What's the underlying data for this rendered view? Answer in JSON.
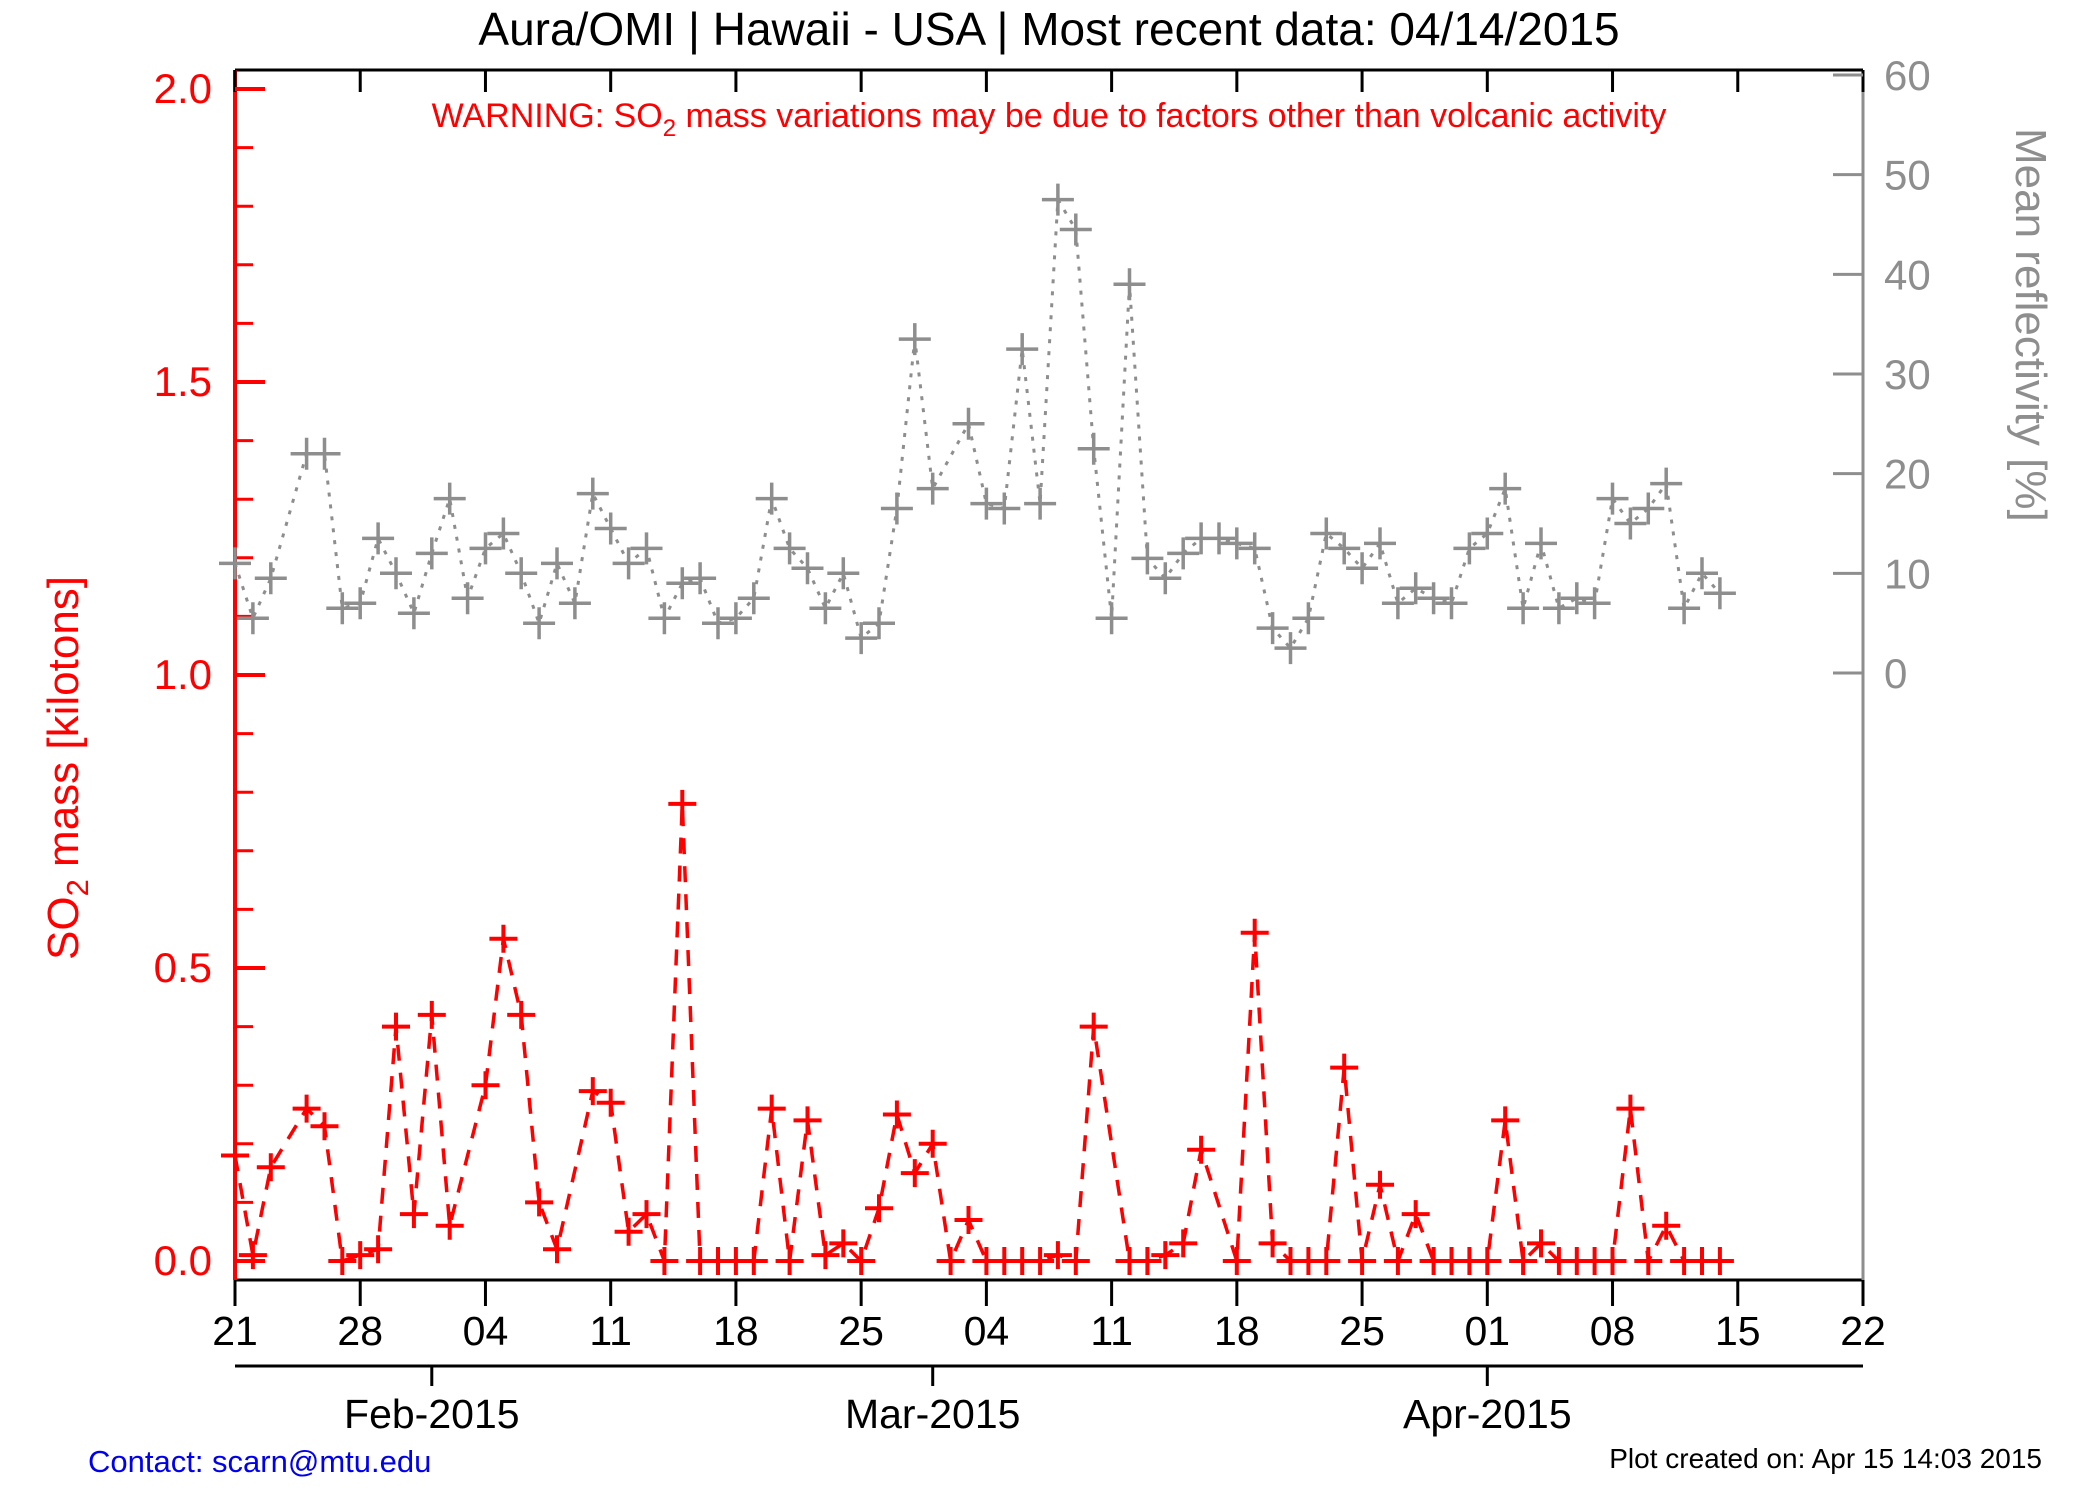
{
  "title": "Aura/OMI | Hawaii - USA | Most recent data: 04/14/2015",
  "warning": {
    "pre": "WARNING: SO",
    "sub": "2",
    "post": " mass variations may be due to factors other than volcanic activity"
  },
  "footer": {
    "contact": "Contact: scarn@mtu.edu",
    "created": "Plot created on: Apr 15 14:03 2015"
  },
  "colors": {
    "so2": "#ff0000",
    "reflectivity": "#8e8e8e",
    "frame": "#000000",
    "contact_blue": "#0000f0"
  },
  "chart_data": {
    "type": "line",
    "title": "Aura/OMI | Hawaii - USA | Most recent data: 04/14/2015",
    "x_axis": {
      "start_date": "2015-01-21",
      "range_days": [
        0,
        91
      ],
      "week_ticks": [
        {
          "day": 0,
          "label": "21"
        },
        {
          "day": 7,
          "label": "28"
        },
        {
          "day": 14,
          "label": "04"
        },
        {
          "day": 21,
          "label": "11"
        },
        {
          "day": 28,
          "label": "18"
        },
        {
          "day": 35,
          "label": "25"
        },
        {
          "day": 42,
          "label": "04"
        },
        {
          "day": 49,
          "label": "11"
        },
        {
          "day": 56,
          "label": "18"
        },
        {
          "day": 63,
          "label": "25"
        },
        {
          "day": 70,
          "label": "01"
        },
        {
          "day": 77,
          "label": "08"
        },
        {
          "day": 84,
          "label": "15"
        },
        {
          "day": 91,
          "label": "22"
        }
      ],
      "month_ticks": [
        {
          "day": 11,
          "label": "Feb-2015"
        },
        {
          "day": 39,
          "label": "Mar-2015"
        },
        {
          "day": 70,
          "label": "Apr-2015"
        }
      ]
    },
    "y_left": {
      "label_pre": "SO",
      "label_sub": "2",
      "label_post": " mass [kilotons]",
      "range": [
        0.0,
        2.0
      ],
      "major_ticks": [
        0.0,
        0.5,
        1.0,
        1.5,
        2.0
      ],
      "minor_step": 0.1,
      "color": "#ff0000"
    },
    "y_right": {
      "label": "Mean reflectivity [%]",
      "major_ticks": [
        0,
        10,
        20,
        30,
        40,
        50,
        60
      ],
      "color": "#8e8e8e"
    },
    "legend_position": "none",
    "grid": false,
    "series": [
      {
        "name": "SO2 mass [kilotons]",
        "axis": "left",
        "style": "dashed",
        "marker": "plus",
        "color": "#ff0000",
        "points": [
          {
            "d": 0,
            "v": 0.18
          },
          {
            "d": 1,
            "v": 0.01
          },
          {
            "d": 2,
            "v": 0.16
          },
          {
            "d": 4,
            "v": 0.26
          },
          {
            "d": 5,
            "v": 0.23
          },
          {
            "d": 6,
            "v": 0.0
          },
          {
            "d": 7,
            "v": 0.01
          },
          {
            "d": 8,
            "v": 0.02
          },
          {
            "d": 9,
            "v": 0.4
          },
          {
            "d": 10,
            "v": 0.08
          },
          {
            "d": 11,
            "v": 0.42
          },
          {
            "d": 12,
            "v": 0.06
          },
          {
            "d": 14,
            "v": 0.3
          },
          {
            "d": 15,
            "v": 0.55
          },
          {
            "d": 16,
            "v": 0.42
          },
          {
            "d": 17,
            "v": 0.1
          },
          {
            "d": 18,
            "v": 0.02
          },
          {
            "d": 20,
            "v": 0.29
          },
          {
            "d": 21,
            "v": 0.27
          },
          {
            "d": 22,
            "v": 0.05
          },
          {
            "d": 23,
            "v": 0.08
          },
          {
            "d": 24,
            "v": 0.0
          },
          {
            "d": 25,
            "v": 0.78
          },
          {
            "d": 26,
            "v": 0.0
          },
          {
            "d": 27,
            "v": 0.0
          },
          {
            "d": 28,
            "v": 0.0
          },
          {
            "d": 29,
            "v": 0.0
          },
          {
            "d": 30,
            "v": 0.26
          },
          {
            "d": 31,
            "v": 0.0
          },
          {
            "d": 32,
            "v": 0.24
          },
          {
            "d": 33,
            "v": 0.01
          },
          {
            "d": 34,
            "v": 0.03
          },
          {
            "d": 35,
            "v": 0.0
          },
          {
            "d": 36,
            "v": 0.09
          },
          {
            "d": 37,
            "v": 0.25
          },
          {
            "d": 38,
            "v": 0.15
          },
          {
            "d": 39,
            "v": 0.2
          },
          {
            "d": 40,
            "v": 0.0
          },
          {
            "d": 41,
            "v": 0.07
          },
          {
            "d": 42,
            "v": 0.0
          },
          {
            "d": 43,
            "v": 0.0
          },
          {
            "d": 44,
            "v": 0.0
          },
          {
            "d": 45,
            "v": 0.0
          },
          {
            "d": 46,
            "v": 0.01
          },
          {
            "d": 47,
            "v": 0.0
          },
          {
            "d": 48,
            "v": 0.4
          },
          {
            "d": 50,
            "v": 0.0
          },
          {
            "d": 51,
            "v": 0.0
          },
          {
            "d": 52,
            "v": 0.01
          },
          {
            "d": 53,
            "v": 0.03
          },
          {
            "d": 54,
            "v": 0.19
          },
          {
            "d": 56,
            "v": 0.0
          },
          {
            "d": 57,
            "v": 0.56
          },
          {
            "d": 58,
            "v": 0.03
          },
          {
            "d": 59,
            "v": 0.0
          },
          {
            "d": 60,
            "v": 0.0
          },
          {
            "d": 61,
            "v": 0.0
          },
          {
            "d": 62,
            "v": 0.33
          },
          {
            "d": 63,
            "v": 0.0
          },
          {
            "d": 64,
            "v": 0.13
          },
          {
            "d": 65,
            "v": 0.0
          },
          {
            "d": 66,
            "v": 0.08
          },
          {
            "d": 67,
            "v": 0.0
          },
          {
            "d": 68,
            "v": 0.0
          },
          {
            "d": 69,
            "v": 0.0
          },
          {
            "d": 70,
            "v": 0.0
          },
          {
            "d": 71,
            "v": 0.24
          },
          {
            "d": 72,
            "v": 0.0
          },
          {
            "d": 73,
            "v": 0.03
          },
          {
            "d": 74,
            "v": 0.0
          },
          {
            "d": 75,
            "v": 0.0
          },
          {
            "d": 76,
            "v": 0.0
          },
          {
            "d": 77,
            "v": 0.0
          },
          {
            "d": 78,
            "v": 0.26
          },
          {
            "d": 79,
            "v": 0.0
          },
          {
            "d": 80,
            "v": 0.06
          },
          {
            "d": 81,
            "v": 0.0
          },
          {
            "d": 82,
            "v": 0.0
          },
          {
            "d": 83,
            "v": 0.0
          }
        ]
      },
      {
        "name": "Mean reflectivity [%]",
        "axis": "right",
        "style": "dotted",
        "marker": "plus",
        "color": "#8e8e8e",
        "points": [
          {
            "d": 0,
            "v": 11
          },
          {
            "d": 1,
            "v": 5.5
          },
          {
            "d": 2,
            "v": 9.5
          },
          {
            "d": 4,
            "v": 22
          },
          {
            "d": 5,
            "v": 22
          },
          {
            "d": 6,
            "v": 6.5
          },
          {
            "d": 7,
            "v": 7
          },
          {
            "d": 8,
            "v": 13.5
          },
          {
            "d": 9,
            "v": 10
          },
          {
            "d": 10,
            "v": 6
          },
          {
            "d": 11,
            "v": 12
          },
          {
            "d": 12,
            "v": 17.5
          },
          {
            "d": 13,
            "v": 7.5
          },
          {
            "d": 14,
            "v": 12.5
          },
          {
            "d": 15,
            "v": 14
          },
          {
            "d": 16,
            "v": 10
          },
          {
            "d": 17,
            "v": 5
          },
          {
            "d": 18,
            "v": 11
          },
          {
            "d": 19,
            "v": 7
          },
          {
            "d": 20,
            "v": 18
          },
          {
            "d": 21,
            "v": 14.5
          },
          {
            "d": 22,
            "v": 11
          },
          {
            "d": 23,
            "v": 12.5
          },
          {
            "d": 24,
            "v": 5.5
          },
          {
            "d": 25,
            "v": 9
          },
          {
            "d": 26,
            "v": 9.5
          },
          {
            "d": 27,
            "v": 5
          },
          {
            "d": 28,
            "v": 5.5
          },
          {
            "d": 29,
            "v": 7.5
          },
          {
            "d": 30,
            "v": 17.5
          },
          {
            "d": 31,
            "v": 12.5
          },
          {
            "d": 32,
            "v": 10.5
          },
          {
            "d": 33,
            "v": 6.5
          },
          {
            "d": 34,
            "v": 10
          },
          {
            "d": 35,
            "v": 3.5
          },
          {
            "d": 36,
            "v": 5
          },
          {
            "d": 37,
            "v": 16.5
          },
          {
            "d": 38,
            "v": 33.5
          },
          {
            "d": 39,
            "v": 18.5
          },
          {
            "d": 41,
            "v": 25
          },
          {
            "d": 42,
            "v": 17
          },
          {
            "d": 43,
            "v": 16.5
          },
          {
            "d": 44,
            "v": 32.5
          },
          {
            "d": 45,
            "v": 17
          },
          {
            "d": 46,
            "v": 47.5
          },
          {
            "d": 47,
            "v": 44.5
          },
          {
            "d": 48,
            "v": 22.5
          },
          {
            "d": 49,
            "v": 5.5
          },
          {
            "d": 50,
            "v": 39
          },
          {
            "d": 51,
            "v": 11.5
          },
          {
            "d": 52,
            "v": 9.5
          },
          {
            "d": 53,
            "v": 12
          },
          {
            "d": 54,
            "v": 13.5
          },
          {
            "d": 55,
            "v": 13.5
          },
          {
            "d": 56,
            "v": 13
          },
          {
            "d": 57,
            "v": 12.5
          },
          {
            "d": 58,
            "v": 4.5
          },
          {
            "d": 59,
            "v": 2.5
          },
          {
            "d": 60,
            "v": 5.5
          },
          {
            "d": 61,
            "v": 14
          },
          {
            "d": 62,
            "v": 12.5
          },
          {
            "d": 63,
            "v": 10.5
          },
          {
            "d": 64,
            "v": 13
          },
          {
            "d": 65,
            "v": 7
          },
          {
            "d": 66,
            "v": 8.5
          },
          {
            "d": 67,
            "v": 7.5
          },
          {
            "d": 68,
            "v": 7
          },
          {
            "d": 69,
            "v": 12.5
          },
          {
            "d": 70,
            "v": 14
          },
          {
            "d": 71,
            "v": 18.5
          },
          {
            "d": 72,
            "v": 6.5
          },
          {
            "d": 73,
            "v": 13
          },
          {
            "d": 74,
            "v": 6.5
          },
          {
            "d": 75,
            "v": 7.5
          },
          {
            "d": 76,
            "v": 7
          },
          {
            "d": 77,
            "v": 17.5
          },
          {
            "d": 78,
            "v": 15
          },
          {
            "d": 79,
            "v": 16.5
          },
          {
            "d": 80,
            "v": 19
          },
          {
            "d": 81,
            "v": 6.5
          },
          {
            "d": 82,
            "v": 10
          },
          {
            "d": 83,
            "v": 8
          }
        ]
      }
    ]
  }
}
